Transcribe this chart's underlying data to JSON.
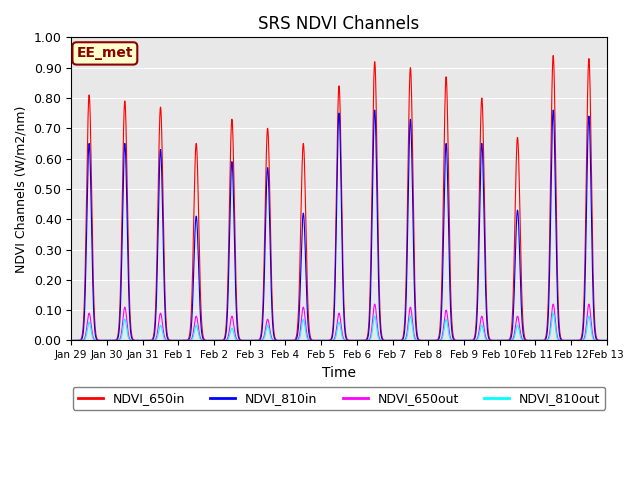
{
  "title": "SRS NDVI Channels",
  "xlabel": "Time",
  "ylabel": "NDVI Channels (W/m2/nm)",
  "ylim": [
    0.0,
    1.0
  ],
  "yticks": [
    0.0,
    0.1,
    0.2,
    0.3,
    0.4,
    0.5,
    0.6,
    0.7,
    0.8,
    0.9,
    1.0
  ],
  "annotation_text": "EE_met",
  "legend_labels": [
    "NDVI_650in",
    "NDVI_810in",
    "NDVI_650out",
    "NDVI_810out"
  ],
  "legend_colors": [
    "red",
    "blue",
    "magenta",
    "cyan"
  ],
  "background_color": "#e8e8e8",
  "n_days": 15,
  "ndvi_650in_peaks": [
    0.81,
    0.79,
    0.77,
    0.65,
    0.73,
    0.7,
    0.65,
    0.84,
    0.92,
    0.9,
    0.87,
    0.8,
    0.67,
    0.94,
    0.93
  ],
  "ndvi_810in_peaks": [
    0.65,
    0.65,
    0.63,
    0.41,
    0.59,
    0.57,
    0.42,
    0.75,
    0.76,
    0.73,
    0.65,
    0.65,
    0.43,
    0.76,
    0.74
  ],
  "ndvi_650out_peaks": [
    0.09,
    0.11,
    0.09,
    0.08,
    0.08,
    0.07,
    0.11,
    0.09,
    0.12,
    0.11,
    0.1,
    0.08,
    0.08,
    0.12,
    0.12
  ],
  "ndvi_810out_peaks": [
    0.06,
    0.07,
    0.05,
    0.05,
    0.04,
    0.05,
    0.07,
    0.06,
    0.08,
    0.08,
    0.07,
    0.05,
    0.05,
    0.09,
    0.08
  ],
  "x_tick_labels": [
    "Jan 29",
    "Jan 30",
    "Jan 31",
    "Feb 1",
    "Feb 2",
    "Feb 3",
    "Feb 4",
    "Feb 5",
    "Feb 6",
    "Feb 7",
    "Feb 8",
    "Feb 9",
    "Feb 10",
    "Feb 11",
    "Feb 12",
    "Feb 13"
  ],
  "x_tick_positions": [
    0,
    1,
    2,
    3,
    4,
    5,
    6,
    7,
    8,
    9,
    10,
    11,
    12,
    13,
    14,
    15
  ]
}
